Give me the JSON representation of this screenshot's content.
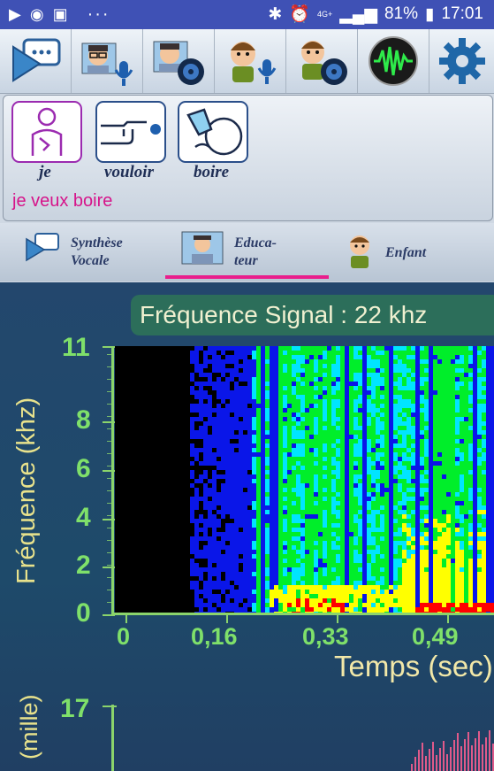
{
  "status_bar": {
    "battery": "81%",
    "time": "17:01",
    "network": "4G+",
    "dots": "···"
  },
  "toolbar": {
    "buttons": [
      {
        "name": "speech-synthesis-button"
      },
      {
        "name": "educator-record-button"
      },
      {
        "name": "educator-play-button"
      },
      {
        "name": "child-record-button"
      },
      {
        "name": "child-play-button"
      },
      {
        "name": "spectrum-button"
      },
      {
        "name": "settings-button"
      }
    ]
  },
  "phrase": {
    "cards": [
      {
        "label": "je",
        "icon": "self-point-icon",
        "selected": true
      },
      {
        "label": "vouloir",
        "icon": "point-finger-icon",
        "selected": false
      },
      {
        "label": "boire",
        "icon": "drink-icon",
        "selected": false
      }
    ],
    "sentence": "je veux boire"
  },
  "tabs": [
    {
      "label": "Synthèse Vocale",
      "line1": "Synthèse",
      "line2": "Vocale"
    },
    {
      "label": "Educateur",
      "line1": "Educa-",
      "line2": "teur",
      "active": true
    },
    {
      "label": "Enfant",
      "line1": "Enfant",
      "line2": ""
    }
  ],
  "spectrogram": {
    "banner": "Fréquence Signal : 22 khz",
    "ylabel": "Fréquence (khz)",
    "xlabel": "Temps (sec)",
    "bottom_ylabel": "(mille)",
    "bottom_tick": "17"
  },
  "chart_data": {
    "type": "heatmap",
    "title": "Fréquence Signal : 22 khz",
    "xlabel": "Temps (sec)",
    "ylabel": "Fréquence (khz)",
    "x_ticks": [
      "0",
      "0,16",
      "0,33",
      "0,49"
    ],
    "y_ticks": [
      "0",
      "2",
      "4",
      "6",
      "8",
      "11"
    ],
    "xlim": [
      0,
      0.56
    ],
    "ylim": [
      0,
      11
    ],
    "colors": {
      "low": "#000000",
      "mid_low": "#0a16e8",
      "mid": "#00e5ff",
      "mid_high": "#00ee2a",
      "high": "#ffff00",
      "peak": "#ff0000"
    }
  }
}
